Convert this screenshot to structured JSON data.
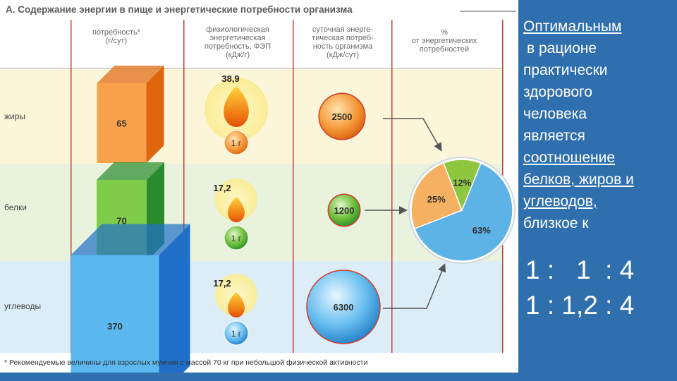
{
  "figure": {
    "title": "А. Содержание энергии в пище и энергетические потребности организма",
    "columns": [
      "потребность* (г/сут)",
      "физиологическая энергетическая потребность, ФЭП (кДж/г)",
      "суточная энергетическая потребность организма (кДж/сут)",
      "% от энергетических потребностей"
    ],
    "column_lines": [
      [
        "потребность*",
        "(г/сут)"
      ],
      [
        "физиологическая",
        "энергетическая",
        "потребность, ФЭП",
        "(кДж/г)"
      ],
      [
        "суточная энерге-",
        "тическая потреб-",
        "ность организма",
        "(кДж/сут)"
      ],
      [
        "%",
        "от энергетических",
        "потребностей"
      ]
    ],
    "rows": [
      {
        "label": "жиры",
        "need": "65",
        "fep": "38,9",
        "unit": "1 г",
        "daily": "2500",
        "color": "#f07d1a",
        "band": "#fbf6d9"
      },
      {
        "label": "белки",
        "need": "70",
        "fep": "17,2",
        "unit": "1 г",
        "daily": "1200",
        "color": "#2f9a34",
        "band": "#e8f2dc"
      },
      {
        "label": "углеводы",
        "need": "370",
        "fep": "17,2",
        "unit": "1 г",
        "daily": "6300",
        "color": "#2a93d8",
        "band": "#dcedf8"
      }
    ],
    "footnote": "* Рекомендуемые величины для взрослых мужчин с массой 70 кг при небольшой физической активности"
  },
  "chart_data": {
    "type": "pie",
    "categories": [
      "углеводы",
      "жиры",
      "белки"
    ],
    "values": [
      63,
      25,
      12
    ],
    "labels": [
      "63%",
      "25%",
      "12%"
    ],
    "colors": [
      "#5db2e6",
      "#f6b061",
      "#8ec63f"
    ]
  },
  "side": {
    "text_1": "Оптимальным",
    "text_2": "в рационе",
    "text_3": "практически",
    "text_4": "здорового",
    "text_5": "человека",
    "text_6": "является",
    "text_7": "соотношение",
    "text_8": "белков, жиров и",
    "text_9": "углеводов,",
    "text_10": "близкое к",
    "ratio_1": "1 :   1  : 4",
    "ratio_2": "1 : 1,2 : 4"
  },
  "colors": {
    "slide_bg": "#2f6fae",
    "accent": "#e23b3b"
  }
}
